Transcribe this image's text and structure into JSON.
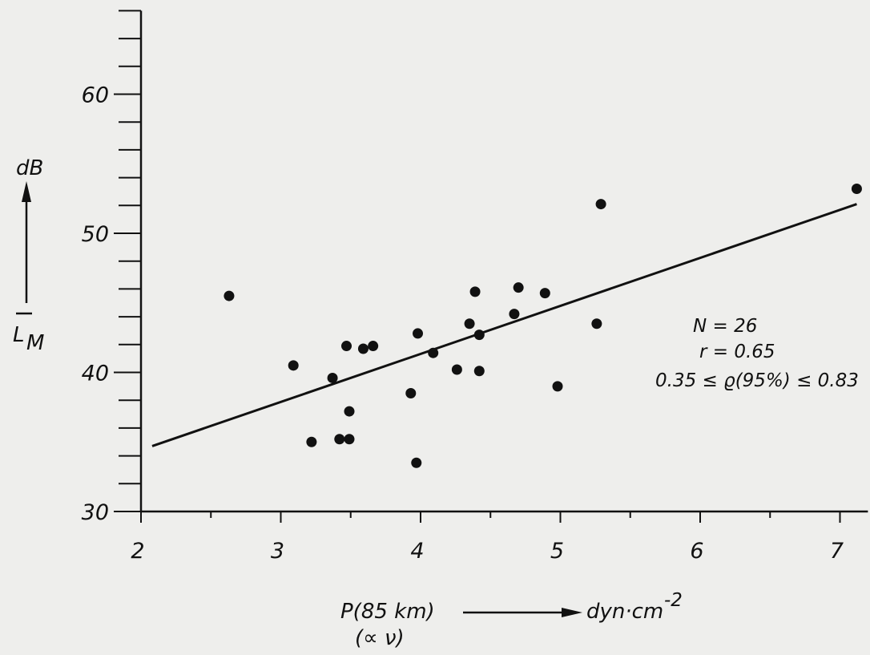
{
  "chart_data": {
    "type": "scatter",
    "title": "",
    "xlim": [
      2,
      7.2
    ],
    "ylim": [
      30,
      66
    ],
    "x_ticks": [
      {
        "value": 2,
        "label": "2"
      },
      {
        "value": 3,
        "label": "3"
      },
      {
        "value": 4,
        "label": "4"
      },
      {
        "value": 5,
        "label": "5"
      },
      {
        "value": 6,
        "label": "6"
      },
      {
        "value": 7,
        "label": "7"
      }
    ],
    "y_ticks": [
      {
        "value": 30,
        "label": "30"
      },
      {
        "value": 40,
        "label": "40"
      },
      {
        "value": 50,
        "label": "50"
      },
      {
        "value": 60,
        "label": "60"
      }
    ],
    "x_minor_step": 0.5,
    "y_minor_step": 2,
    "xlabel": {
      "quantity": "P(85 km)",
      "unit": "dyn·cm",
      "unit_exponent": "-2",
      "note": "(∝ ν)"
    },
    "ylabel": {
      "unit": "dB",
      "symbol": "L",
      "subscript": "M"
    },
    "grid": false,
    "legend": "none",
    "annotations": [
      {
        "text": "N = 26"
      },
      {
        "text": "r = 0.65"
      },
      {
        "text": "0.35 ≤ ϱ(95%) ≤ 0.83"
      }
    ],
    "series": [
      {
        "points": [
          {
            "x": 2.63,
            "y": 45.5
          },
          {
            "x": 3.09,
            "y": 40.5
          },
          {
            "x": 3.22,
            "y": 35.0
          },
          {
            "x": 3.37,
            "y": 39.6
          },
          {
            "x": 3.42,
            "y": 35.2
          },
          {
            "x": 3.47,
            "y": 41.9
          },
          {
            "x": 3.49,
            "y": 35.2
          },
          {
            "x": 3.49,
            "y": 37.2
          },
          {
            "x": 3.59,
            "y": 41.7
          },
          {
            "x": 3.66,
            "y": 41.9
          },
          {
            "x": 3.93,
            "y": 38.5
          },
          {
            "x": 3.97,
            "y": 33.5
          },
          {
            "x": 3.98,
            "y": 42.8
          },
          {
            "x": 4.09,
            "y": 41.4
          },
          {
            "x": 4.26,
            "y": 40.2
          },
          {
            "x": 4.35,
            "y": 43.5
          },
          {
            "x": 4.39,
            "y": 45.8
          },
          {
            "x": 4.42,
            "y": 42.7
          },
          {
            "x": 4.42,
            "y": 40.1
          },
          {
            "x": 4.67,
            "y": 44.2
          },
          {
            "x": 4.7,
            "y": 46.1
          },
          {
            "x": 4.89,
            "y": 45.7
          },
          {
            "x": 4.98,
            "y": 39.0
          },
          {
            "x": 5.26,
            "y": 43.5
          },
          {
            "x": 5.29,
            "y": 52.1
          },
          {
            "x": 7.12,
            "y": 53.2
          }
        ]
      }
    ],
    "regression": {
      "x": [
        2.08,
        7.12
      ],
      "y": [
        34.7,
        52.1
      ]
    }
  }
}
